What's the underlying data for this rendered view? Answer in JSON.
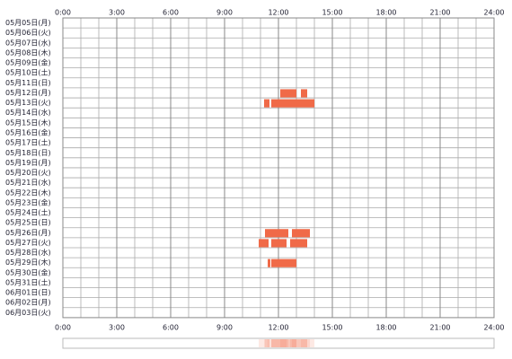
{
  "chart_data": {
    "type": "timeline",
    "categories": [
      "05月05日(月)",
      "05月06日(火)",
      "05月07日(水)",
      "05月08日(木)",
      "05月09日(金)",
      "05月10日(土)",
      "05月11日(日)",
      "05月12日(月)",
      "05月13日(火)",
      "05月14日(水)",
      "05月15日(木)",
      "05月16日(金)",
      "05月17日(土)",
      "05月18日(日)",
      "05月19日(月)",
      "05月20日(火)",
      "05月21日(水)",
      "05月22日(木)",
      "05月23日(金)",
      "05月24日(土)",
      "05月25日(日)",
      "05月26日(月)",
      "05月27日(火)",
      "05月28日(水)",
      "05月29日(木)",
      "05月30日(金)",
      "05月31日(土)",
      "06月01日(日)",
      "06月02日(月)",
      "06月03日(火)"
    ],
    "values": [
      [],
      [],
      [],
      [],
      [],
      [],
      [],
      [
        [
          12.1,
          13.0
        ],
        [
          13.25,
          13.6
        ]
      ],
      [
        [
          11.2,
          11.5
        ],
        [
          11.6,
          14.0
        ]
      ],
      [],
      [],
      [],
      [],
      [],
      [],
      [],
      [],
      [],
      [],
      [],
      [],
      [
        [
          11.25,
          12.55
        ],
        [
          12.75,
          13.75
        ]
      ],
      [
        [
          10.9,
          11.45
        ],
        [
          11.6,
          12.45
        ],
        [
          12.65,
          13.6
        ]
      ],
      [],
      [
        [
          11.4,
          11.55
        ],
        [
          11.6,
          13.0
        ]
      ],
      [],
      [],
      [],
      [],
      []
    ],
    "color": "#f06a48",
    "xlim": [
      0,
      24
    ],
    "xticks": [
      {
        "value": 0,
        "label": "0:00"
      },
      {
        "value": 3,
        "label": "3:00"
      },
      {
        "value": 6,
        "label": "6:00"
      },
      {
        "value": 9,
        "label": "9:00"
      },
      {
        "value": 12,
        "label": "12:00"
      },
      {
        "value": 15,
        "label": "15:00"
      },
      {
        "value": 18,
        "label": "18:00"
      },
      {
        "value": 21,
        "label": "21:00"
      },
      {
        "value": 24,
        "label": "24:00"
      }
    ],
    "grid": true
  }
}
